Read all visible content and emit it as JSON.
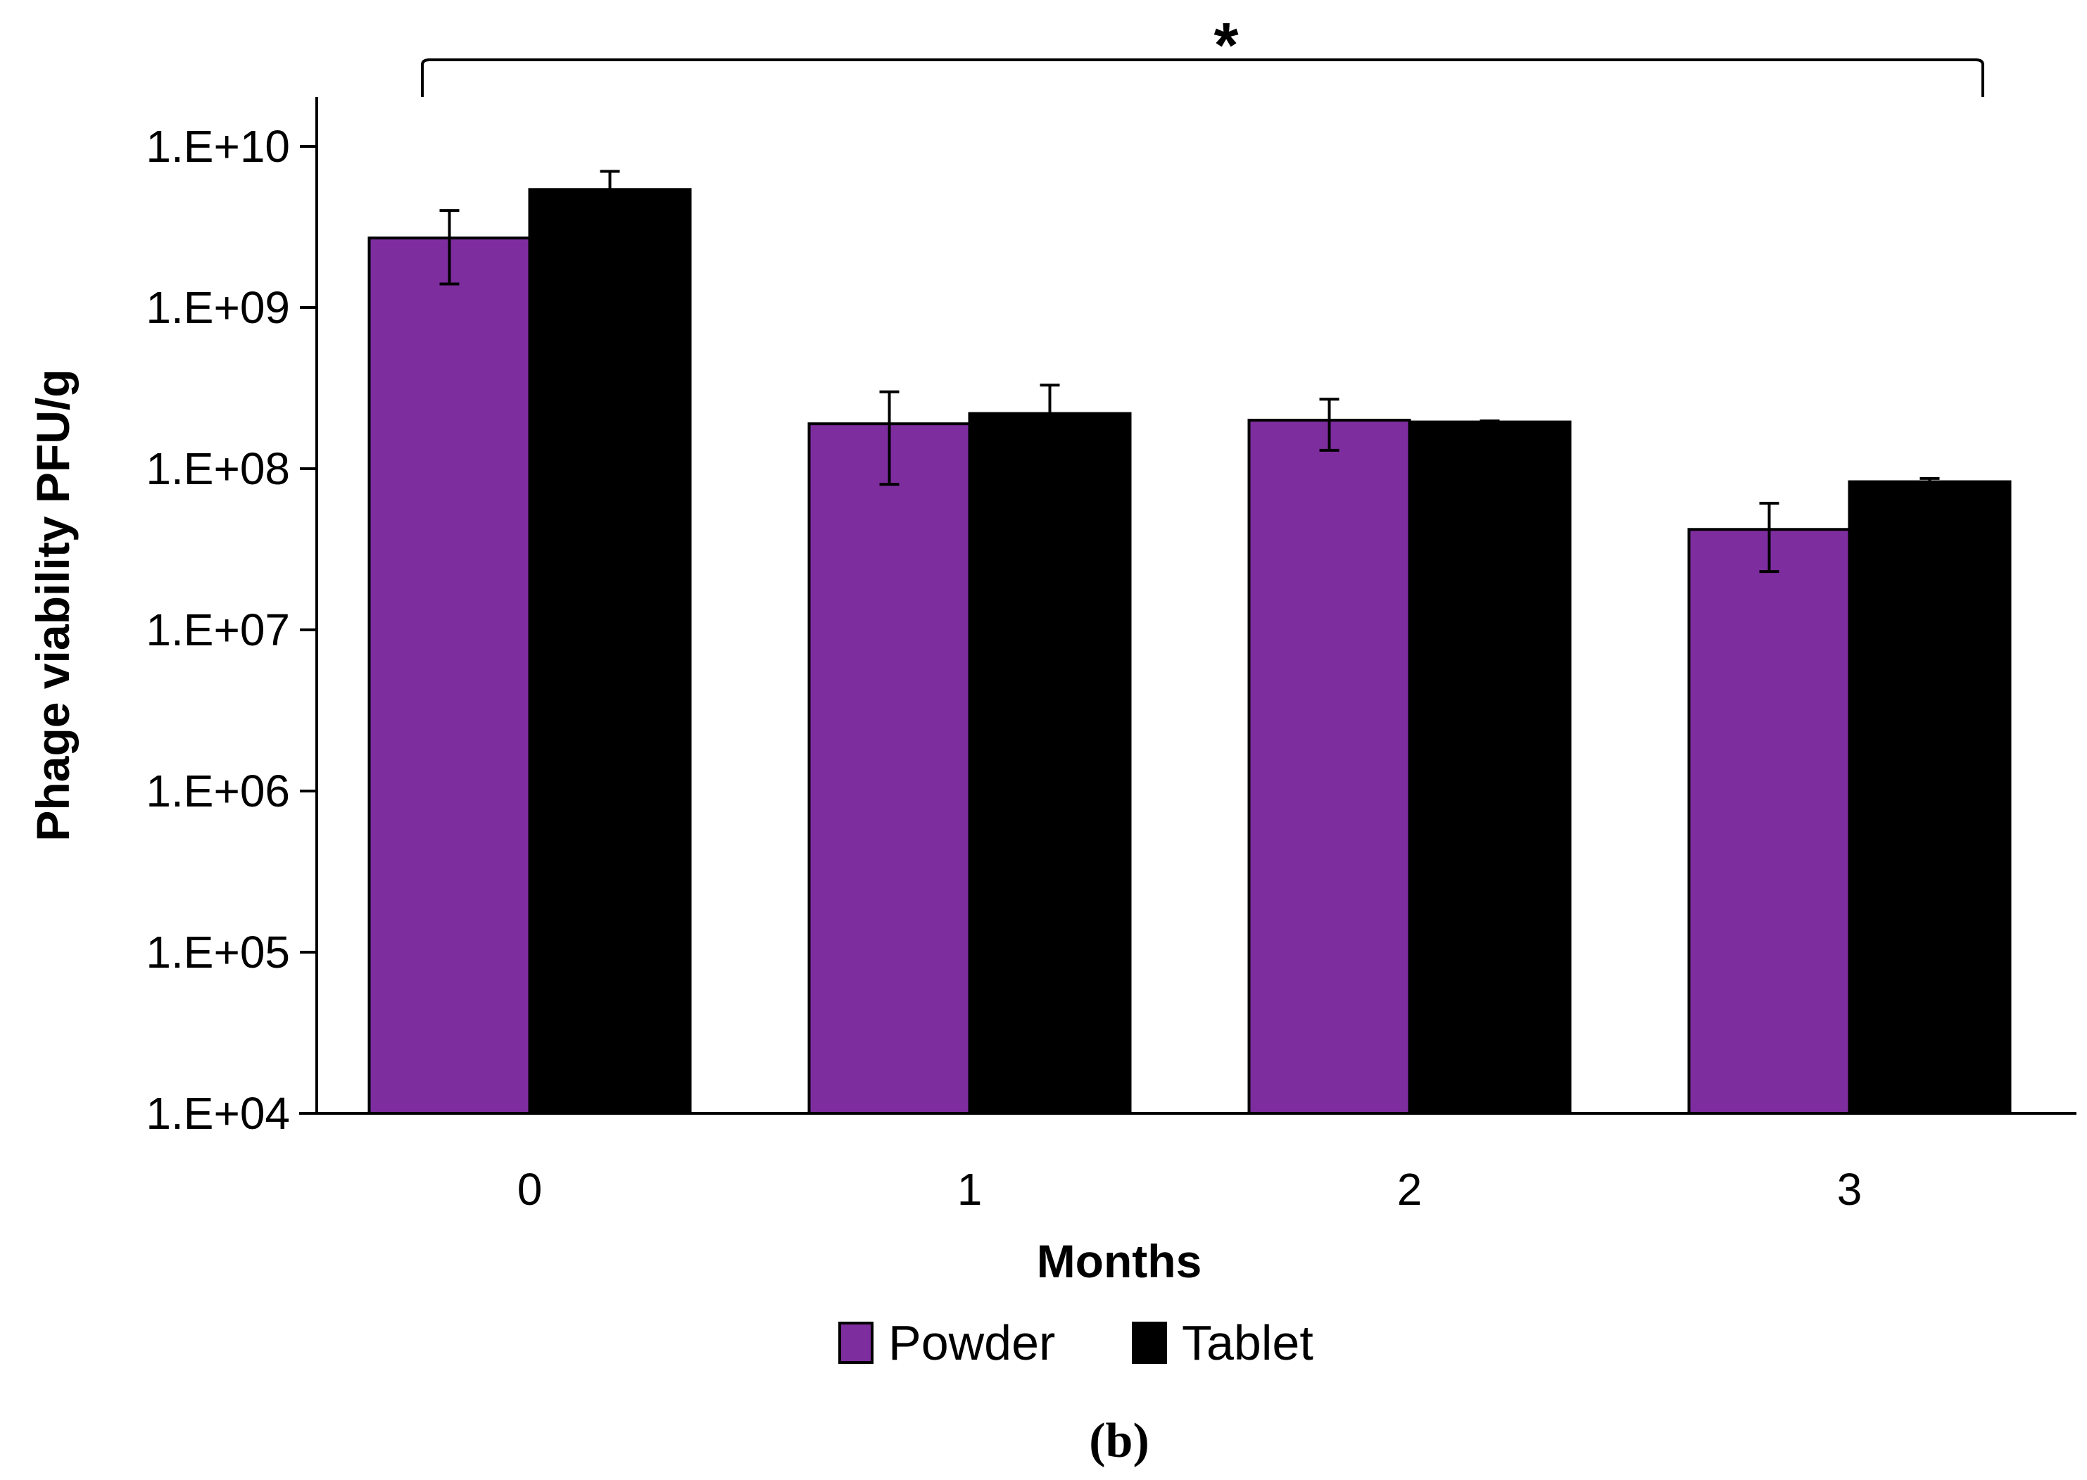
{
  "chart_data": {
    "type": "bar",
    "categories": [
      "0",
      "1",
      "2",
      "3"
    ],
    "series": [
      {
        "name": "Powder",
        "color": "#7e2d9f",
        "values": [
          2700000000,
          190000000,
          200000000,
          42000000
        ],
        "error": [
          1300000000,
          110000000,
          70000000,
          19000000
        ]
      },
      {
        "name": "Tablet",
        "color": "#000000",
        "values": [
          5400000000,
          220000000,
          195000000,
          83000000
        ],
        "error": [
          1600000000,
          110000000,
          3000000,
          4000000
        ]
      }
    ],
    "xlabel": "Months",
    "ylabel": "Phage viability PFU/g",
    "yscale": "log",
    "ylim": [
      10000,
      10000000000
    ],
    "yticks": [
      {
        "value": 10000,
        "label": "1.E+04"
      },
      {
        "value": 100000,
        "label": "1.E+05"
      },
      {
        "value": 1000000,
        "label": "1.E+06"
      },
      {
        "value": 10000000,
        "label": "1.E+07"
      },
      {
        "value": 100000000,
        "label": "1.E+08"
      },
      {
        "value": 1000000000,
        "label": "1.E+09"
      },
      {
        "value": 10000000000,
        "label": "1.E+10"
      }
    ],
    "grid": false,
    "legend": "bottom",
    "significance": {
      "from": "0",
      "to": "3",
      "label": "*"
    },
    "panel_label": "(b)"
  }
}
